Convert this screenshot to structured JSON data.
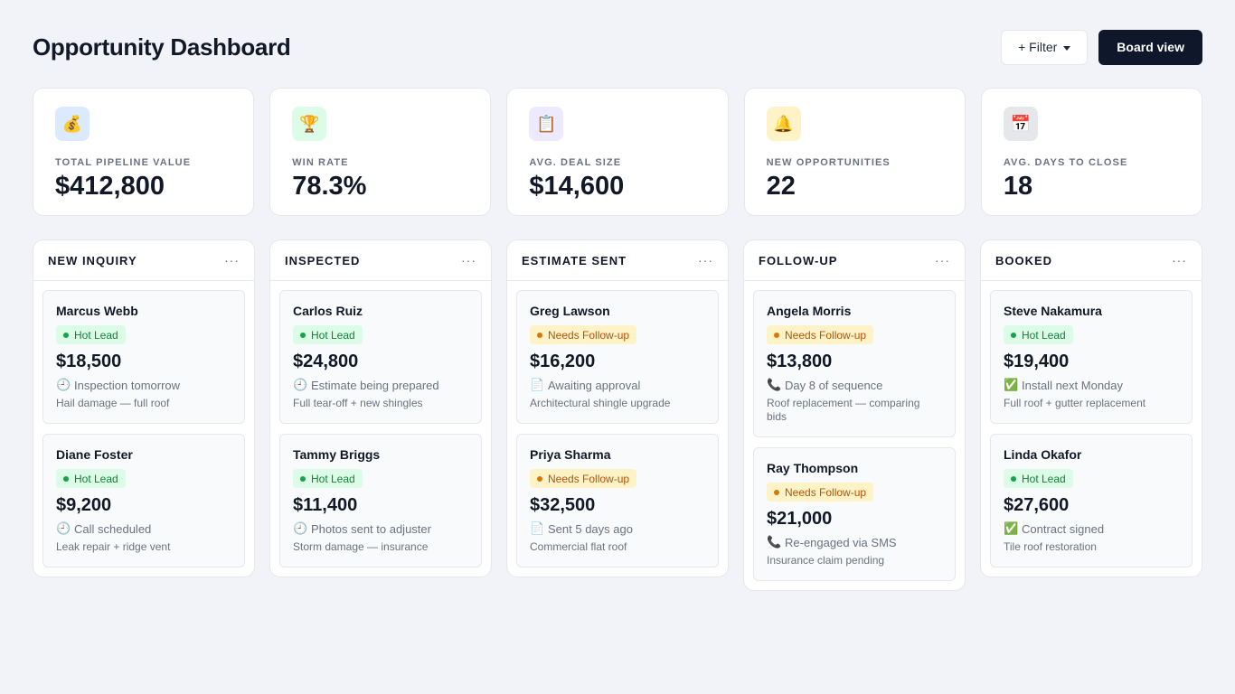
{
  "header": {
    "title": "Opportunity Dashboard",
    "filter_label": "+ Filter",
    "board_view_label": "Board view"
  },
  "kpis": [
    {
      "icon": "money-bag-icon",
      "glyph": "💰",
      "bg": "#dbeafe",
      "label": "Total Pipeline Value",
      "value": "$412,800"
    },
    {
      "icon": "trophy-icon",
      "glyph": "🏆",
      "bg": "#dcfce7",
      "label": "Win Rate",
      "value": "78.3%"
    },
    {
      "icon": "clipboard-icon",
      "glyph": "📋",
      "bg": "#ede9fe",
      "label": "Avg. Deal Size",
      "value": "$14,600"
    },
    {
      "icon": "bell-icon",
      "glyph": "🔔",
      "bg": "#fef3c7",
      "label": "New Opportunities",
      "value": "22"
    },
    {
      "icon": "calendar-icon",
      "glyph": "📅",
      "bg": "#e5e7eb",
      "label": "Avg. Days to Close",
      "value": "18"
    }
  ],
  "columns": [
    {
      "title": "New Inquiry",
      "menu": "···",
      "cards": [
        {
          "name": "Marcus Webb",
          "badge": "Hot Lead",
          "badge_type": "hot",
          "amount": "$18,500",
          "status_icon": "clock-icon",
          "status_glyph": "🕘",
          "status": "Inspection tomorrow",
          "desc": "Hail damage — full roof"
        },
        {
          "name": "Diane Foster",
          "badge": "Hot Lead",
          "badge_type": "hot",
          "amount": "$9,200",
          "status_icon": "clock-icon",
          "status_glyph": "🕘",
          "status": "Call scheduled",
          "desc": "Leak repair + ridge vent"
        }
      ]
    },
    {
      "title": "Inspected",
      "menu": "···",
      "cards": [
        {
          "name": "Carlos Ruiz",
          "badge": "Hot Lead",
          "badge_type": "hot",
          "amount": "$24,800",
          "status_icon": "clock-icon",
          "status_glyph": "🕘",
          "status": "Estimate being prepared",
          "desc": "Full tear-off + new shingles"
        },
        {
          "name": "Tammy Briggs",
          "badge": "Hot Lead",
          "badge_type": "hot",
          "amount": "$11,400",
          "status_icon": "clock-icon",
          "status_glyph": "🕘",
          "status": "Photos sent to adjuster",
          "desc": "Storm damage — insurance"
        }
      ]
    },
    {
      "title": "Estimate Sent",
      "menu": "···",
      "cards": [
        {
          "name": "Greg Lawson",
          "badge": "Needs Follow-up",
          "badge_type": "follow",
          "amount": "$16,200",
          "status_icon": "document-icon",
          "status_glyph": "📄",
          "status": "Awaiting approval",
          "desc": "Architectural shingle upgrade"
        },
        {
          "name": "Priya Sharma",
          "badge": "Needs Follow-up",
          "badge_type": "follow",
          "amount": "$32,500",
          "status_icon": "document-icon",
          "status_glyph": "📄",
          "status": "Sent 5 days ago",
          "desc": "Commercial flat roof"
        }
      ]
    },
    {
      "title": "Follow-up",
      "menu": "···",
      "cards": [
        {
          "name": "Angela Morris",
          "badge": "Needs Follow-up",
          "badge_type": "follow",
          "amount": "$13,800",
          "status_icon": "phone-icon",
          "status_glyph": "📞",
          "status": "Day 8 of sequence",
          "desc": "Roof replacement — comparing bids"
        },
        {
          "name": "Ray Thompson",
          "badge": "Needs Follow-up",
          "badge_type": "follow",
          "amount": "$21,000",
          "status_icon": "phone-icon",
          "status_glyph": "📞",
          "status": "Re-engaged via SMS",
          "desc": "Insurance claim pending"
        }
      ]
    },
    {
      "title": "Booked",
      "menu": "···",
      "cards": [
        {
          "name": "Steve Nakamura",
          "badge": "Hot Lead",
          "badge_type": "hot",
          "amount": "$19,400",
          "status_icon": "check-icon",
          "status_glyph": "✅",
          "status": "Install next Monday",
          "desc": "Full roof + gutter replacement"
        },
        {
          "name": "Linda Okafor",
          "badge": "Hot Lead",
          "badge_type": "hot",
          "amount": "$27,600",
          "status_icon": "check-icon",
          "status_glyph": "✅",
          "status": "Contract signed",
          "desc": "Tile roof restoration"
        }
      ]
    }
  ]
}
